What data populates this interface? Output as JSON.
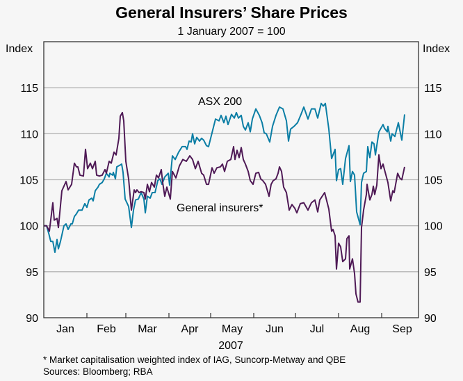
{
  "chart_data": {
    "type": "line",
    "title": "General Insurers’ Share Prices",
    "subtitle": "1 January 2007 = 100",
    "ylabel_left": "Index",
    "ylabel_right": "Index",
    "xlabel": "2007",
    "ylim": [
      90,
      120
    ],
    "yticks": [
      90,
      95,
      100,
      105,
      110,
      115
    ],
    "xlim_days": [
      0,
      269.5
    ],
    "x_unit": "days since 1 January 2007",
    "month_boundaries": [
      0,
      31,
      59,
      90,
      120,
      151,
      181,
      212,
      243
    ],
    "month_labels": [
      "Jan",
      "Feb",
      "Mar",
      "Apr",
      "May",
      "Jun",
      "Jul",
      "Aug",
      "Sep"
    ],
    "grid": true,
    "series": [
      {
        "name": "ASX 200",
        "label": "ASX 200",
        "color": "#0b7ea5",
        "points": [
          [
            0,
            100
          ],
          [
            2,
            100.0
          ],
          [
            3.5,
            99.2
          ],
          [
            5,
            98.3
          ],
          [
            6.5,
            98.3
          ],
          [
            8,
            97.1
          ],
          [
            9.5,
            98.5
          ],
          [
            10.5,
            97.5
          ],
          [
            12,
            98.3
          ],
          [
            14.5,
            100.0
          ],
          [
            16,
            100.2
          ],
          [
            17.5,
            99.6
          ],
          [
            19.5,
            100.2
          ],
          [
            20.5,
            100.2
          ],
          [
            22,
            101.0
          ],
          [
            23.5,
            101.3
          ],
          [
            25,
            101.7
          ],
          [
            27.5,
            101.7
          ],
          [
            29.5,
            102.4
          ],
          [
            31,
            102.0
          ],
          [
            32.5,
            102.8
          ],
          [
            34.5,
            103.0
          ],
          [
            35.5,
            102.7
          ],
          [
            37,
            103.8
          ],
          [
            39,
            104.2
          ],
          [
            40,
            104.5
          ],
          [
            42,
            104.7
          ],
          [
            43.5,
            105.1
          ],
          [
            45,
            105.7
          ],
          [
            47,
            105.3
          ],
          [
            47.5,
            105.7
          ],
          [
            49.5,
            105.5
          ],
          [
            50,
            105.8
          ],
          [
            51.5,
            105.1
          ],
          [
            52.5,
            106.4
          ],
          [
            55,
            106.6
          ],
          [
            56,
            106.7
          ],
          [
            57,
            105.8
          ],
          [
            58.5,
            102.9
          ],
          [
            61,
            102.1
          ],
          [
            63,
            99.8
          ],
          [
            64.5,
            101.7
          ],
          [
            66,
            102.8
          ],
          [
            68,
            102.9
          ],
          [
            70,
            103.6
          ],
          [
            72,
            102.9
          ],
          [
            73,
            101.4
          ],
          [
            74.5,
            103.2
          ],
          [
            76.5,
            103.0
          ],
          [
            78,
            103.6
          ],
          [
            80,
            103.6
          ],
          [
            82,
            104.9
          ],
          [
            83.5,
            105.1
          ],
          [
            85,
            104.5
          ],
          [
            87,
            105.3
          ],
          [
            89.5,
            105.7
          ],
          [
            90.5,
            104.4
          ],
          [
            92.5,
            107.6
          ],
          [
            94.5,
            107.2
          ],
          [
            97,
            108.0
          ],
          [
            99.5,
            108.6
          ],
          [
            102,
            108.6
          ],
          [
            103,
            108.3
          ],
          [
            104.5,
            109.2
          ],
          [
            106,
            109.1
          ],
          [
            107,
            110.0
          ],
          [
            108.5,
            108.9
          ],
          [
            110,
            109.6
          ],
          [
            112,
            109.2
          ],
          [
            113.5,
            109.5
          ],
          [
            115,
            109.3
          ],
          [
            117,
            108.7
          ],
          [
            118.5,
            108.6
          ],
          [
            121,
            110.1
          ],
          [
            123.5,
            111.6
          ],
          [
            126,
            111.4
          ],
          [
            127.5,
            112.0
          ],
          [
            129.5,
            111.2
          ],
          [
            131,
            111.9
          ],
          [
            132.5,
            111.0
          ],
          [
            135,
            112.1
          ],
          [
            137,
            111.7
          ],
          [
            138.5,
            112.3
          ],
          [
            140,
            111.7
          ],
          [
            142,
            112.0
          ],
          [
            143.5,
            110.8
          ],
          [
            145,
            110.4
          ],
          [
            147,
            111.2
          ],
          [
            148.5,
            110.2
          ],
          [
            150,
            111.6
          ],
          [
            152.5,
            112.7
          ],
          [
            155,
            112.0
          ],
          [
            157,
            111.2
          ],
          [
            158.5,
            110.1
          ],
          [
            160,
            110.0
          ],
          [
            162.5,
            109.1
          ],
          [
            164.5,
            110.8
          ],
          [
            167,
            112.0
          ],
          [
            169.5,
            112.9
          ],
          [
            172,
            112.7
          ],
          [
            174.5,
            111.4
          ],
          [
            176,
            109.2
          ],
          [
            177.5,
            110.5
          ],
          [
            180,
            110.8
          ],
          [
            182.5,
            111.2
          ],
          [
            185,
            112.1
          ],
          [
            187,
            112.9
          ],
          [
            190,
            111.6
          ],
          [
            192.5,
            112.7
          ],
          [
            195,
            112.7
          ],
          [
            197,
            111.7
          ],
          [
            199.5,
            113.3
          ],
          [
            201,
            113.0
          ],
          [
            202.5,
            113.3
          ],
          [
            205,
            110.5
          ],
          [
            207,
            107.3
          ],
          [
            209.5,
            108.3
          ],
          [
            210.5,
            104.9
          ],
          [
            212,
            106.1
          ],
          [
            213.5,
            106.2
          ],
          [
            215,
            104.5
          ],
          [
            217,
            107.3
          ],
          [
            219.5,
            108.7
          ],
          [
            220.5,
            104.8
          ],
          [
            222,
            105.9
          ],
          [
            223.5,
            105.5
          ],
          [
            225,
            101.5
          ],
          [
            227.5,
            100.1
          ],
          [
            228.5,
            104.7
          ],
          [
            230,
            105.7
          ],
          [
            232,
            105.9
          ],
          [
            233,
            108.6
          ],
          [
            234.5,
            107.4
          ],
          [
            236,
            109.1
          ],
          [
            237.5,
            108.9
          ],
          [
            238.5,
            107.7
          ],
          [
            241,
            110.2
          ],
          [
            244,
            111.0
          ],
          [
            245,
            110.6
          ],
          [
            247,
            110.2
          ],
          [
            247.5,
            110.8
          ],
          [
            249.5,
            109.2
          ],
          [
            250.5,
            110.0
          ],
          [
            252.5,
            109.7
          ],
          [
            255,
            111.2
          ],
          [
            257.5,
            109.3
          ],
          [
            259.5,
            112.1
          ]
        ]
      },
      {
        "name": "General insurers*",
        "label": "General insurers*",
        "color": "#4f1a56",
        "points": [
          [
            0,
            100.0
          ],
          [
            2,
            100.0
          ],
          [
            4,
            99.4
          ],
          [
            6.5,
            102.5
          ],
          [
            7.5,
            100.6
          ],
          [
            9.5,
            100.8
          ],
          [
            10.5,
            99.8
          ],
          [
            13,
            103.8
          ],
          [
            16,
            104.8
          ],
          [
            17.5,
            103.9
          ],
          [
            20,
            104.5
          ],
          [
            22,
            106.8
          ],
          [
            23.5,
            106.4
          ],
          [
            24.5,
            106.4
          ],
          [
            26,
            105.5
          ],
          [
            28.5,
            105.4
          ],
          [
            30,
            108.3
          ],
          [
            31.5,
            106.2
          ],
          [
            33.5,
            106.8
          ],
          [
            35,
            106.2
          ],
          [
            37,
            107.0
          ],
          [
            38,
            105.5
          ],
          [
            40,
            105.4
          ],
          [
            42,
            105.5
          ],
          [
            44,
            106.1
          ],
          [
            45,
            105.7
          ],
          [
            47,
            107.0
          ],
          [
            48.5,
            106.8
          ],
          [
            50.5,
            108.0
          ],
          [
            52,
            107.7
          ],
          [
            54,
            109.5
          ],
          [
            55,
            111.9
          ],
          [
            56.5,
            112.3
          ],
          [
            57.5,
            111.4
          ],
          [
            59,
            107.0
          ],
          [
            61,
            105.1
          ],
          [
            63,
            101.7
          ],
          [
            65,
            103.9
          ],
          [
            66,
            103.6
          ],
          [
            67,
            103.9
          ],
          [
            68.5,
            103.6
          ],
          [
            70,
            103.7
          ],
          [
            72,
            103.6
          ],
          [
            73,
            102.9
          ],
          [
            74.5,
            104.5
          ],
          [
            76,
            103.7
          ],
          [
            77.5,
            104.7
          ],
          [
            79.5,
            104.2
          ],
          [
            81,
            105.5
          ],
          [
            82.5,
            105.2
          ],
          [
            84.5,
            106.1
          ],
          [
            85.5,
            104.7
          ],
          [
            87,
            103.2
          ],
          [
            88.5,
            104.2
          ],
          [
            91,
            102.9
          ],
          [
            92.5,
            105.9
          ],
          [
            95,
            105.2
          ],
          [
            97.5,
            106.5
          ],
          [
            100,
            107.2
          ],
          [
            102.5,
            107.0
          ],
          [
            105,
            107.6
          ],
          [
            107,
            107.2
          ],
          [
            109,
            106.2
          ],
          [
            111,
            107.0
          ],
          [
            113.5,
            105.7
          ],
          [
            115,
            105.5
          ],
          [
            117,
            104.5
          ],
          [
            118.5,
            104.5
          ],
          [
            121,
            106.3
          ],
          [
            122.5,
            105.7
          ],
          [
            124.5,
            106.3
          ],
          [
            127,
            106.4
          ],
          [
            128.5,
            106.7
          ],
          [
            130,
            105.9
          ],
          [
            132,
            107.0
          ],
          [
            134.5,
            107.2
          ],
          [
            136.5,
            108.6
          ],
          [
            137.5,
            107.2
          ],
          [
            139,
            108.2
          ],
          [
            140.5,
            107.4
          ],
          [
            142,
            108.5
          ],
          [
            143.5,
            107.2
          ],
          [
            145,
            106.7
          ],
          [
            147,
            105.9
          ],
          [
            148.5,
            104.9
          ],
          [
            150.5,
            104.5
          ],
          [
            152.5,
            105.7
          ],
          [
            154.5,
            105.8
          ],
          [
            156,
            105.1
          ],
          [
            157.5,
            104.9
          ],
          [
            159.5,
            104.5
          ],
          [
            162,
            103.2
          ],
          [
            163.5,
            104.5
          ],
          [
            165,
            104.9
          ],
          [
            167,
            105.1
          ],
          [
            168.5,
            105.7
          ],
          [
            169.5,
            106.4
          ],
          [
            171,
            105.9
          ],
          [
            172.5,
            104.2
          ],
          [
            174.5,
            103.6
          ],
          [
            176.5,
            101.7
          ],
          [
            178.5,
            102.3
          ],
          [
            180.5,
            101.9
          ],
          [
            182,
            101.4
          ],
          [
            184.5,
            102.4
          ],
          [
            187,
            102.5
          ],
          [
            190,
            101.7
          ],
          [
            192.5,
            102.5
          ],
          [
            195,
            102.8
          ],
          [
            197,
            101.5
          ],
          [
            198.5,
            102.8
          ],
          [
            202,
            103.6
          ],
          [
            203.5,
            102.7
          ],
          [
            205,
            101.8
          ],
          [
            207,
            99.4
          ],
          [
            208,
            99.6
          ],
          [
            209.5,
            98.9
          ],
          [
            210.5,
            95.3
          ],
          [
            212,
            98.1
          ],
          [
            213.5,
            97.7
          ],
          [
            215,
            96.1
          ],
          [
            217,
            96.4
          ],
          [
            218,
            98.6
          ],
          [
            219.5,
            98.9
          ],
          [
            220,
            95.3
          ],
          [
            222,
            96.4
          ],
          [
            223.5,
            94.8
          ],
          [
            224.5,
            92.6
          ],
          [
            226,
            91.7
          ],
          [
            227.5,
            91.7
          ],
          [
            228.5,
            99.8
          ],
          [
            230,
            101.7
          ],
          [
            232,
            103.4
          ],
          [
            232.5,
            104.5
          ],
          [
            234.5,
            102.8
          ],
          [
            236,
            103.4
          ],
          [
            237,
            104.3
          ],
          [
            238,
            103.4
          ],
          [
            239.5,
            104.4
          ],
          [
            241,
            107.7
          ],
          [
            242.5,
            106.2
          ],
          [
            244,
            106.7
          ],
          [
            245,
            106.1
          ],
          [
            247.5,
            104.7
          ],
          [
            249.5,
            102.7
          ],
          [
            251,
            103.8
          ],
          [
            252,
            103.6
          ],
          [
            254.5,
            105.7
          ],
          [
            256,
            105.2
          ],
          [
            257.5,
            105.0
          ],
          [
            259.5,
            106.4
          ]
        ]
      }
    ],
    "footnotes": [
      "*   Market capitalisation weighted index of IAG, Suncorp-Metway and QBE",
      "Sources: Bloomberg; RBA"
    ]
  }
}
